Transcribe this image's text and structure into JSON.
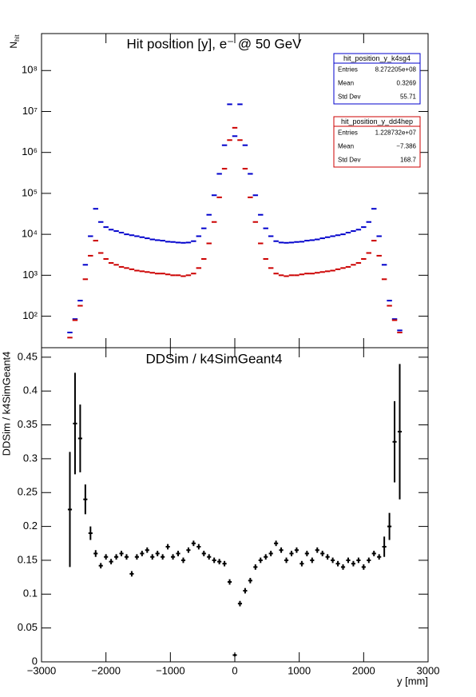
{
  "chart_data": [
    {
      "type": "histogram",
      "title": "Hit position [y],  e⁻ @ 50 GeV",
      "ylabel": {
        "main": "N",
        "sub": "hit"
      },
      "log": true,
      "xlim": [
        -3000,
        3000
      ],
      "ylim": [
        17,
        800000000
      ],
      "yticks": [
        {
          "value": 100,
          "label": "10²"
        },
        {
          "value": 1000,
          "label": "10³"
        },
        {
          "value": 10000,
          "label": "10⁴"
        },
        {
          "value": 100000,
          "label": "10⁵"
        },
        {
          "value": 1000000,
          "label": "10⁶"
        },
        {
          "value": 10000000,
          "label": "10⁷"
        },
        {
          "value": 100000000,
          "label": "10⁸"
        }
      ],
      "bins": [
        -2600,
        -2520,
        -2440,
        -2360,
        -2280,
        -2200,
        -2120,
        -2040,
        -1960,
        -1880,
        -1800,
        -1720,
        -1640,
        -1560,
        -1480,
        -1400,
        -1320,
        -1240,
        -1160,
        -1080,
        -1000,
        -920,
        -840,
        -760,
        -680,
        -600,
        -520,
        -440,
        -360,
        -280,
        -200,
        -120,
        -40,
        40,
        120,
        200,
        280,
        360,
        440,
        520,
        600,
        680,
        760,
        840,
        920,
        1000,
        1080,
        1160,
        1240,
        1320,
        1400,
        1480,
        1560,
        1640,
        1720,
        1800,
        1880,
        1960,
        2040,
        2120,
        2200,
        2280,
        2360,
        2440,
        2520,
        2600
      ],
      "series": [
        {
          "name": "hit_position_y_k4sg4",
          "color": "#0000cc",
          "values": [
            40,
            85,
            240,
            1800,
            9000,
            42000,
            20000,
            15000,
            13000,
            12000,
            11000,
            10000,
            9500,
            9000,
            8500,
            8000,
            7500,
            7200,
            7000,
            6600,
            6500,
            6300,
            6200,
            6300,
            6800,
            9000,
            14000,
            30000,
            90000,
            300000,
            1500000,
            15000000,
            2500000,
            15000000,
            1500000,
            300000,
            90000,
            30000,
            14000,
            9000,
            6800,
            6300,
            6200,
            6300,
            6500,
            6600,
            7000,
            7200,
            7500,
            8000,
            8500,
            9000,
            9500,
            10000,
            11000,
            12000,
            13000,
            15000,
            20000,
            42000,
            9000,
            1800,
            240,
            85,
            45
          ],
          "stats": [
            [
              "Entries",
              "8.272205e+08"
            ],
            [
              "Mean",
              "0.3269"
            ],
            [
              "Std Dev",
              "55.71"
            ]
          ]
        },
        {
          "name": "hit_position_y_dd4hep",
          "color": "#cc0000",
          "values": [
            30,
            80,
            180,
            800,
            3000,
            7000,
            3500,
            2500,
            2000,
            1800,
            1600,
            1500,
            1400,
            1300,
            1250,
            1200,
            1150,
            1100,
            1100,
            1050,
            1000,
            1000,
            950,
            1000,
            1100,
            1500,
            2500,
            6000,
            20000,
            80000,
            400000,
            2000000,
            4000000,
            2000000,
            400000,
            80000,
            20000,
            6000,
            2500,
            1500,
            1100,
            1000,
            950,
            1000,
            1000,
            1050,
            1100,
            1100,
            1150,
            1200,
            1250,
            1300,
            1400,
            1500,
            1600,
            1800,
            2000,
            2500,
            3500,
            7000,
            3000,
            800,
            180,
            80,
            40
          ],
          "stats": [
            [
              "Entries",
              "1.228732e+07"
            ],
            [
              "Mean",
              "−7.386"
            ],
            [
              "Std Dev",
              "168.7"
            ]
          ]
        }
      ]
    },
    {
      "type": "errorbar",
      "title": "DDSim / k4SimGeant4",
      "ylabel": "DDSim / k4SimGeant4",
      "xlabel": "y [mm]",
      "color": "#000000",
      "xlim": [
        -3000,
        3000
      ],
      "ylim": [
        0,
        0.464
      ],
      "xticks": [
        {
          "value": -3000,
          "label": "−3000"
        },
        {
          "value": -2000,
          "label": "−2000"
        },
        {
          "value": -1000,
          "label": "−1000"
        },
        0,
        1000,
        2000,
        3000
      ],
      "yticks": [
        0,
        0.05,
        0.1,
        0.15,
        0.2,
        0.25,
        0.3,
        0.35,
        0.4,
        0.45
      ],
      "x": [
        -2560,
        -2480,
        -2400,
        -2320,
        -2240,
        -2160,
        -2080,
        -2000,
        -1920,
        -1840,
        -1760,
        -1680,
        -1600,
        -1520,
        -1440,
        -1360,
        -1280,
        -1200,
        -1120,
        -1040,
        -960,
        -880,
        -800,
        -720,
        -640,
        -560,
        -480,
        -400,
        -320,
        -240,
        -160,
        -80,
        0,
        80,
        160,
        240,
        320,
        400,
        480,
        560,
        640,
        720,
        800,
        880,
        960,
        1040,
        1120,
        1200,
        1280,
        1360,
        1440,
        1520,
        1600,
        1680,
        1760,
        1840,
        1920,
        2000,
        2080,
        2160,
        2240,
        2320,
        2400,
        2480,
        2560
      ],
      "values": [
        0.225,
        0.352,
        0.33,
        0.24,
        0.19,
        0.16,
        0.142,
        0.155,
        0.148,
        0.155,
        0.16,
        0.155,
        0.13,
        0.155,
        0.16,
        0.165,
        0.155,
        0.16,
        0.155,
        0.17,
        0.155,
        0.16,
        0.15,
        0.165,
        0.175,
        0.17,
        0.16,
        0.155,
        0.15,
        0.148,
        0.145,
        0.118,
        0.01,
        0.086,
        0.105,
        0.12,
        0.14,
        0.15,
        0.155,
        0.16,
        0.175,
        0.165,
        0.15,
        0.16,
        0.165,
        0.145,
        0.16,
        0.15,
        0.165,
        0.16,
        0.155,
        0.15,
        0.145,
        0.14,
        0.15,
        0.145,
        0.15,
        0.14,
        0.15,
        0.16,
        0.155,
        0.17,
        0.2,
        0.325,
        0.34
      ],
      "errors": [
        0.085,
        0.075,
        0.05,
        0.022,
        0.01,
        0.005,
        0.004,
        0.004,
        0.004,
        0.004,
        0.004,
        0.004,
        0.004,
        0.004,
        0.004,
        0.004,
        0.004,
        0.004,
        0.004,
        0.004,
        0.004,
        0.004,
        0.004,
        0.004,
        0.004,
        0.004,
        0.004,
        0.004,
        0.004,
        0.004,
        0.004,
        0.004,
        0.002,
        0.004,
        0.004,
        0.004,
        0.004,
        0.004,
        0.004,
        0.004,
        0.004,
        0.004,
        0.004,
        0.004,
        0.004,
        0.004,
        0.004,
        0.004,
        0.004,
        0.004,
        0.004,
        0.004,
        0.004,
        0.004,
        0.004,
        0.004,
        0.004,
        0.004,
        0.004,
        0.004,
        0.004,
        0.015,
        0.02,
        0.06,
        0.1
      ]
    }
  ]
}
